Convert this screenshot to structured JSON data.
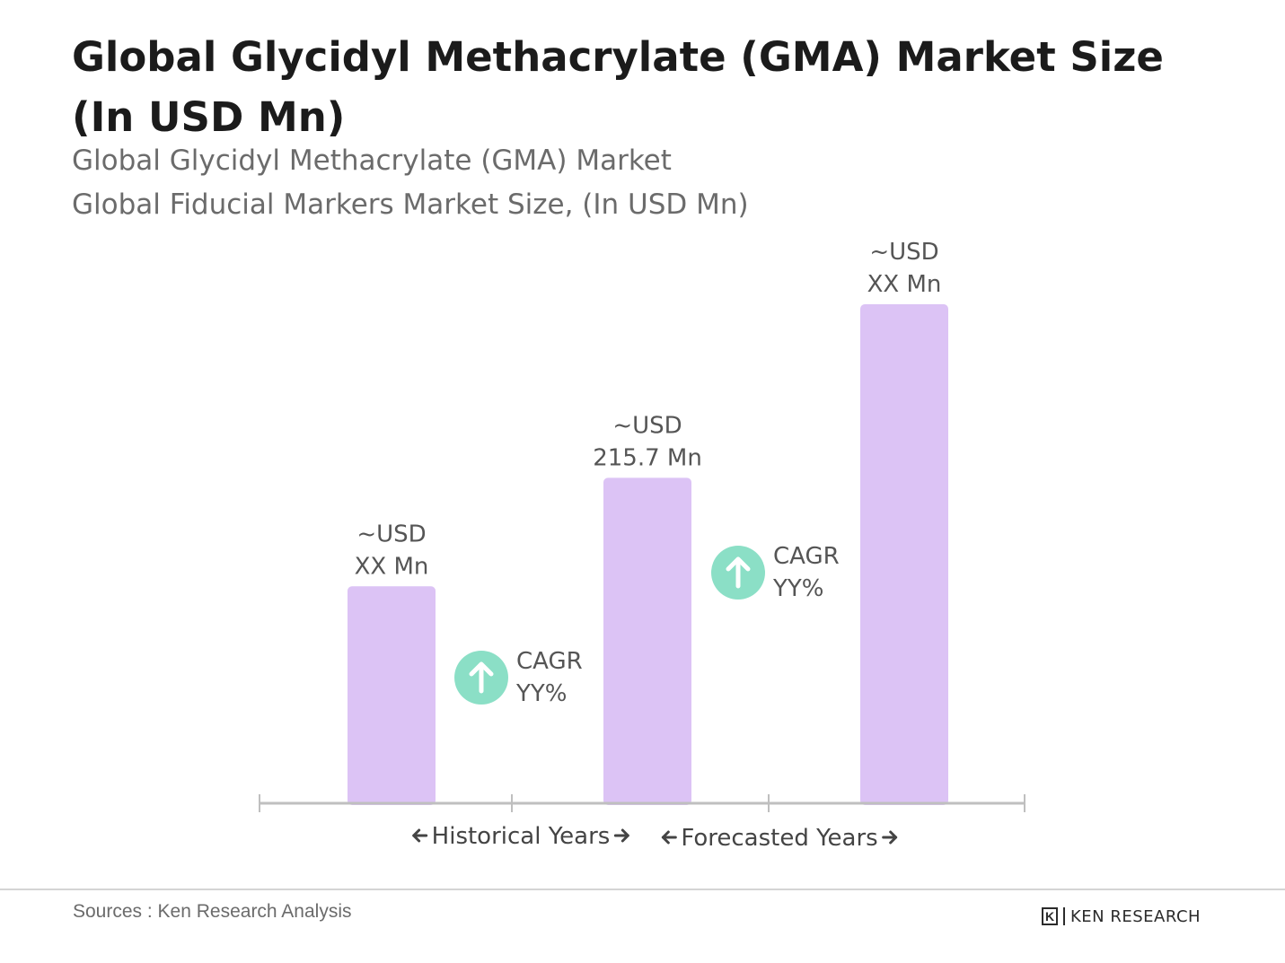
{
  "title": "Global Glycidyl Methacrylate (GMA) Market  Size (In USD Mn)",
  "subtitle_line1": "Global Glycidyl Methacrylate (GMA) Market",
  "subtitle_line2": "Global Fiducial Markers Market Size, (In USD Mn)",
  "colors": {
    "bar": "#dcc3f5",
    "cagr_circle": "#8bdfc6",
    "axis": "#bfbfbf",
    "text": "#555555"
  },
  "chart_data": {
    "type": "bar",
    "categories": [
      "",
      "",
      ""
    ],
    "values": [
      100,
      150,
      230
    ],
    "value_labels": [
      [
        "~USD",
        "XX Mn"
      ],
      [
        "~USD",
        "215.7 Mn"
      ],
      [
        "~USD",
        "XX Mn"
      ]
    ],
    "cagr_annotations": [
      [
        "CAGR",
        "YY%"
      ],
      [
        "CAGR",
        "YY%"
      ]
    ],
    "period_labels": [
      "Historical Years",
      "Forecasted Years"
    ],
    "ylim": [
      0,
      230
    ],
    "grid": false,
    "y_axis_shown": false
  },
  "sources": "Sources : Ken Research Analysis",
  "logo_text": "KEN RESEARCH",
  "logo_mark": "K"
}
